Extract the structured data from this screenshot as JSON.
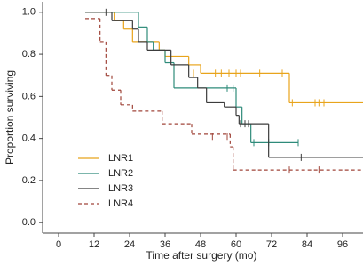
{
  "chart_data": {
    "type": "step",
    "xlabel": "Time after surgery (mo)",
    "ylabel": "Proportion surviving",
    "xlim": [
      -5.4,
      102.9
    ],
    "ylim": [
      -0.05,
      1.05
    ],
    "xticks": [
      0,
      12,
      24,
      36,
      48,
      60,
      72,
      84,
      96
    ],
    "yticks": [
      {
        "value": 0,
        "label": "0.0"
      },
      0.2,
      0.4,
      0.6,
      0.8,
      {
        "value": 1,
        "label": "1.0"
      }
    ],
    "legend": "lower left",
    "series": [
      {
        "name": "LNR1",
        "color": "#e8a41c",
        "line_style": "solid",
        "x": [
          9,
          19,
          22,
          25,
          34,
          36,
          44,
          48,
          78,
          102.9
        ],
        "values": [
          1.0,
          0.96,
          0.92,
          0.86,
          0.82,
          0.79,
          0.75,
          0.71,
          0.57,
          0.57
        ],
        "censored": {
          "x": [
            45.6,
            53,
            55,
            57.6,
            60,
            61.5,
            68,
            75.6,
            79,
            86.7,
            88,
            89.7
          ],
          "values": [
            0.71,
            0.71,
            0.71,
            0.71,
            0.71,
            0.71,
            0.71,
            0.71,
            0.57,
            0.57,
            0.57,
            0.57
          ]
        }
      },
      {
        "name": "LNR2",
        "color": "#2e8b7a",
        "line_style": "solid",
        "x": [
          9,
          27,
          30,
          32,
          36,
          39,
          60,
          62,
          65,
          81
        ],
        "values": [
          1.0,
          0.93,
          0.86,
          0.82,
          0.76,
          0.64,
          0.55,
          0.47,
          0.38,
          0.38
        ],
        "censored": {
          "x": [
            57,
            59,
            66,
            71,
            81
          ],
          "values": [
            0.64,
            0.64,
            0.38,
            0.38,
            0.38
          ]
        }
      },
      {
        "name": "LNR3",
        "color": "#3c3c3c",
        "line_style": "solid",
        "x": [
          9,
          18,
          25,
          27,
          30,
          38,
          44,
          47,
          50,
          56,
          60,
          61,
          71,
          102.9
        ],
        "values": [
          1.0,
          0.96,
          0.92,
          0.86,
          0.82,
          0.75,
          0.69,
          0.64,
          0.57,
          0.55,
          0.51,
          0.47,
          0.31,
          0.31
        ],
        "censored": {
          "x": [
            16,
            61.5,
            63,
            64.2,
            82
          ],
          "values": [
            1.0,
            0.47,
            0.47,
            0.47,
            0.31
          ]
        }
      },
      {
        "name": "LNR4",
        "color": "#a0453a",
        "line_style": "dashed",
        "x": [
          9,
          14,
          16,
          18,
          21,
          25,
          35,
          45,
          58,
          59,
          102.9
        ],
        "values": [
          0.97,
          0.86,
          0.7,
          0.63,
          0.56,
          0.53,
          0.47,
          0.42,
          0.36,
          0.25,
          0.25
        ],
        "censored": {
          "x": [
            52,
            57,
            78,
            88
          ],
          "values": [
            0.41,
            0.41,
            0.25,
            0.25
          ]
        }
      }
    ]
  }
}
